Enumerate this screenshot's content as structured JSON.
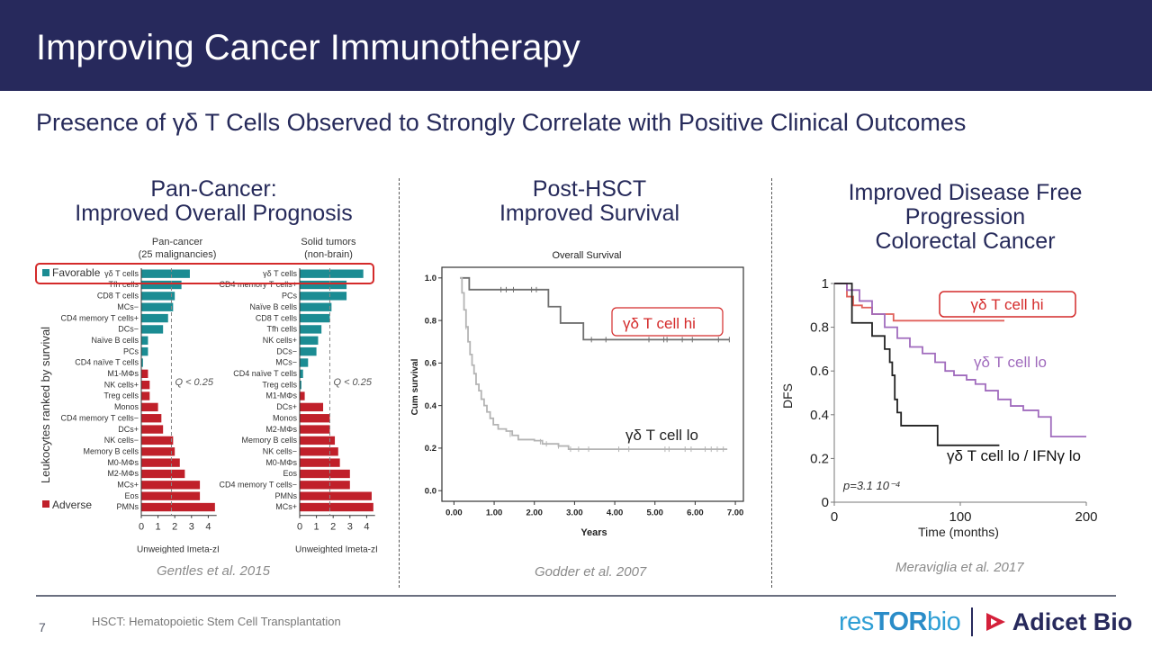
{
  "header": {
    "title": "Improving Cancer Immunotherapy"
  },
  "subtitle": "Presence of γδ T Cells Observed to Strongly Correlate with Positive Clinical Outcomes",
  "panels": [
    {
      "title_line1": "Pan-Cancer:",
      "title_line2": "Improved Overall Prognosis",
      "citation": "Gentles et al. 2015"
    },
    {
      "title_line1": "Post-HSCT",
      "title_line2": "Improved Survival",
      "citation": "Godder et al. 2007"
    },
    {
      "title_line1": "Improved Disease Free",
      "title_line2": "Progression",
      "title_line3": "Colorectal Cancer",
      "citation": "Meraviglia et al. 2017"
    }
  ],
  "footer": {
    "page_number": "7",
    "footnote": "HSCT: Hematopoietic Stem Cell Transplantation",
    "logo_restor": {
      "prefix": "res",
      "bold": "TOR",
      "suffix": "bio"
    },
    "logo_adicet": "Adicet Bio"
  },
  "colors": {
    "favorable": "#1b8c93",
    "adverse": "#c0202a",
    "highlight": "#d42a2a",
    "navy": "#27295c",
    "purple": "#a06bbd"
  },
  "chart_data": [
    {
      "type": "bar",
      "orientation": "horizontal",
      "title": "Pan-cancer",
      "subtitle": "(25 malignancies)",
      "ylabel": "Leukocytes ranked by survival",
      "xlabel": "Unweighted Imeta-zI",
      "xlim": [
        0,
        4.5
      ],
      "xticks": [
        "0",
        "1",
        "2",
        "3",
        "4"
      ],
      "threshold": {
        "value": 1.8,
        "label": "Q < 0.25"
      },
      "legend": [
        {
          "label": "Favorable",
          "color": "#1b8c93"
        },
        {
          "label": "Adverse",
          "color": "#c0202a"
        }
      ],
      "categories": [
        "γδ T cells",
        "Tfh cells",
        "CD8 T cells",
        "MCs−",
        "CD4 memory T cells+",
        "DCs−",
        "Naïve B cells",
        "PCs",
        "CD4 naïve T cells",
        "M1-MΦs",
        "NK cells+",
        "Treg cells",
        "Monos",
        "CD4 memory T cells−",
        "DCs+",
        "NK cells−",
        "Memory B cells",
        "M0-MΦs",
        "M2-MΦs",
        "MCs+",
        "Eos",
        "PMNs"
      ],
      "values": [
        2.9,
        2.4,
        2.0,
        1.9,
        1.6,
        1.3,
        0.4,
        0.4,
        0.1,
        0.4,
        0.5,
        0.5,
        1.0,
        1.2,
        1.3,
        1.9,
        2.0,
        2.3,
        2.6,
        3.5,
        3.5,
        4.4
      ],
      "groups": [
        "favorable",
        "favorable",
        "favorable",
        "favorable",
        "favorable",
        "favorable",
        "favorable",
        "favorable",
        "favorable",
        "adverse",
        "adverse",
        "adverse",
        "adverse",
        "adverse",
        "adverse",
        "adverse",
        "adverse",
        "adverse",
        "adverse",
        "adverse",
        "adverse",
        "adverse"
      ],
      "highlighted": "γδ T cells"
    },
    {
      "type": "bar",
      "orientation": "horizontal",
      "title": "Solid tumors",
      "subtitle": "(non-brain)",
      "xlabel": "Unweighted Imeta-zI",
      "xlim": [
        0,
        4.5
      ],
      "xticks": [
        "0",
        "1",
        "2",
        "3",
        "4"
      ],
      "threshold": {
        "value": 1.8,
        "label": "Q < 0.25"
      },
      "categories": [
        "γδ T cells",
        "CD4 memory T cells+",
        "PCs",
        "Naïve B cells",
        "CD8 T cells",
        "Tfh cells",
        "NK cells+",
        "DCs−",
        "MCs−",
        "CD4 naïve T cells",
        "Treg cells",
        "M1-MΦs",
        "DCs+",
        "Monos",
        "M2-MΦs",
        "Memory B cells",
        "NK cells−",
        "M0-MΦs",
        "Eos",
        "CD4 memory T cells−",
        "PMNs",
        "MCs+"
      ],
      "values": [
        3.8,
        2.8,
        2.8,
        1.9,
        1.8,
        1.3,
        1.1,
        1.0,
        0.5,
        0.2,
        0.1,
        0.3,
        1.4,
        1.8,
        1.8,
        2.1,
        2.3,
        2.4,
        3.0,
        3.0,
        4.3,
        4.4
      ],
      "groups": [
        "favorable",
        "favorable",
        "favorable",
        "favorable",
        "favorable",
        "favorable",
        "favorable",
        "favorable",
        "favorable",
        "favorable",
        "favorable",
        "adverse",
        "adverse",
        "adverse",
        "adverse",
        "adverse",
        "adverse",
        "adverse",
        "adverse",
        "adverse",
        "adverse",
        "adverse"
      ],
      "highlighted": "γδ T cells"
    },
    {
      "type": "line",
      "subtype": "kaplan-meier",
      "title": "Overall Survival",
      "xlabel": "Years",
      "ylabel": "Cum survival",
      "xlim": [
        -0.3,
        7.2
      ],
      "ylim": [
        -0.05,
        1.05
      ],
      "xticks": [
        "0.00",
        "1.00",
        "2.00",
        "3.00",
        "4.00",
        "5.00",
        "6.00",
        "7.00"
      ],
      "yticks": [
        "0.0",
        "0.2",
        "0.4",
        "0.6",
        "0.8",
        "1.0"
      ],
      "series": [
        {
          "name": "γδ T cell hi",
          "color": "#6f6f6f",
          "highlighted": true,
          "steps": [
            [
              0.15,
              1.0
            ],
            [
              0.38,
              0.945
            ],
            [
              2.35,
              0.865
            ],
            [
              2.65,
              0.788
            ],
            [
              3.22,
              0.71
            ],
            [
              6.85,
              0.71
            ]
          ],
          "censored": [
            [
              1.17,
              0.945
            ],
            [
              1.3,
              0.945
            ],
            [
              1.48,
              0.945
            ],
            [
              1.93,
              0.945
            ],
            [
              2.05,
              0.945
            ],
            [
              3.42,
              0.71
            ],
            [
              3.78,
              0.71
            ],
            [
              4.85,
              0.71
            ],
            [
              5.22,
              0.71
            ],
            [
              5.3,
              0.71
            ],
            [
              5.68,
              0.71
            ],
            [
              5.93,
              0.71
            ],
            [
              6.58,
              0.71
            ],
            [
              6.85,
              0.71
            ]
          ]
        },
        {
          "name": "γδ T cell lo",
          "color": "#b4b4b4",
          "steps": [
            [
              0.15,
              1.0
            ],
            [
              0.2,
              0.93
            ],
            [
              0.25,
              0.85
            ],
            [
              0.3,
              0.77
            ],
            [
              0.35,
              0.7
            ],
            [
              0.4,
              0.64
            ],
            [
              0.45,
              0.59
            ],
            [
              0.5,
              0.55
            ],
            [
              0.55,
              0.5
            ],
            [
              0.62,
              0.47
            ],
            [
              0.68,
              0.43
            ],
            [
              0.75,
              0.4
            ],
            [
              0.82,
              0.37
            ],
            [
              0.9,
              0.34
            ],
            [
              0.98,
              0.31
            ],
            [
              1.1,
              0.29
            ],
            [
              1.3,
              0.28
            ],
            [
              1.45,
              0.26
            ],
            [
              1.6,
              0.24
            ],
            [
              2.0,
              0.235
            ],
            [
              2.2,
              0.22
            ],
            [
              2.6,
              0.21
            ],
            [
              2.85,
              0.195
            ],
            [
              6.8,
              0.195
            ]
          ],
          "censored": [
            [
              0.3,
              0.77
            ],
            [
              1.4,
              0.265
            ],
            [
              2.15,
              0.23
            ],
            [
              2.3,
              0.22
            ],
            [
              2.6,
              0.21
            ],
            [
              2.9,
              0.195
            ],
            [
              3.1,
              0.195
            ],
            [
              3.35,
              0.195
            ],
            [
              4.1,
              0.195
            ],
            [
              4.35,
              0.195
            ],
            [
              5.25,
              0.195
            ],
            [
              5.35,
              0.195
            ],
            [
              5.75,
              0.195
            ],
            [
              5.9,
              0.195
            ],
            [
              6.25,
              0.195
            ],
            [
              6.4,
              0.195
            ],
            [
              6.55,
              0.195
            ],
            [
              6.7,
              0.195
            ]
          ]
        }
      ]
    },
    {
      "type": "line",
      "subtype": "kaplan-meier",
      "xlabel": "Time (months)",
      "ylabel": "DFS",
      "xlim": [
        0,
        200
      ],
      "ylim": [
        0,
        1
      ],
      "xticks": [
        "0",
        "100",
        "200"
      ],
      "yticks": [
        "0",
        "0.2",
        "0.4",
        "0.6",
        "0.8",
        "1"
      ],
      "annotation": "p=3.1 10⁻⁴",
      "series": [
        {
          "name": "γδ T cell hi",
          "color": "#e0605a",
          "highlighted": true,
          "steps": [
            [
              0,
              1.0
            ],
            [
              10,
              0.94
            ],
            [
              15,
              0.9
            ],
            [
              22,
              0.89
            ],
            [
              30,
              0.86
            ],
            [
              47,
              0.83
            ],
            [
              135,
              0.83
            ]
          ]
        },
        {
          "name": "γδ T cell lo",
          "color": "#a06bbd",
          "steps": [
            [
              0,
              1.0
            ],
            [
              10,
              0.97
            ],
            [
              20,
              0.92
            ],
            [
              30,
              0.86
            ],
            [
              40,
              0.8
            ],
            [
              50,
              0.75
            ],
            [
              60,
              0.71
            ],
            [
              70,
              0.68
            ],
            [
              80,
              0.64
            ],
            [
              88,
              0.6
            ],
            [
              95,
              0.58
            ],
            [
              105,
              0.56
            ],
            [
              112,
              0.54
            ],
            [
              120,
              0.51
            ],
            [
              130,
              0.47
            ],
            [
              140,
              0.44
            ],
            [
              150,
              0.42
            ],
            [
              162,
              0.39
            ],
            [
              172,
              0.3
            ],
            [
              200,
              0.3
            ]
          ]
        },
        {
          "name": "γδ T cell lo / IFNγ lo",
          "color": "#222222",
          "steps": [
            [
              0,
              1.0
            ],
            [
              14,
              0.82
            ],
            [
              30,
              0.76
            ],
            [
              40,
              0.7
            ],
            [
              44,
              0.64
            ],
            [
              46,
              0.58
            ],
            [
              48,
              0.47
            ],
            [
              50,
              0.41
            ],
            [
              53,
              0.35
            ],
            [
              82,
              0.26
            ],
            [
              131,
              0.26
            ]
          ]
        }
      ]
    }
  ]
}
